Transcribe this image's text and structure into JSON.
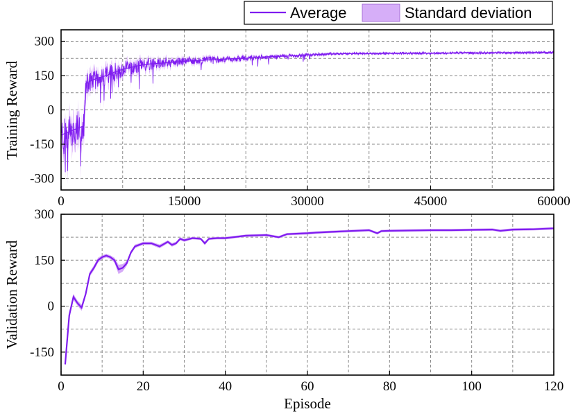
{
  "colors": {
    "average": "#7f1cf0",
    "std_fill": "#c88ef5",
    "std_fill_legend": "#d6aef8"
  },
  "legend": {
    "average_label": "Average",
    "std_label": "Standard deviation"
  },
  "chart_data": [
    {
      "type": "line",
      "ylabel": "Training Reward",
      "xlabel": "",
      "xlim": [
        0,
        60000
      ],
      "ylim": [
        -350,
        350
      ],
      "xticks": [
        0,
        15000,
        30000,
        45000,
        60000
      ],
      "yticks": [
        -300,
        -150,
        0,
        150,
        300
      ],
      "grid": true,
      "legend_position": "top-right",
      "series": [
        {
          "name": "Average",
          "x": [
            0,
            1000,
            2000,
            2800,
            3000,
            3500,
            4500,
            5500,
            6500,
            7500,
            9000,
            10500,
            12500,
            15000,
            17500,
            20000,
            22500,
            25000,
            27500,
            30000,
            32500,
            35000,
            40000,
            45000,
            50000,
            55000,
            60000
          ],
          "y": [
            -110,
            -95,
            -80,
            -70,
            115,
            125,
            140,
            150,
            165,
            178,
            190,
            200,
            205,
            212,
            218,
            222,
            226,
            232,
            235,
            240,
            244,
            246,
            247,
            248,
            249,
            250,
            251
          ],
          "std": [
            70,
            75,
            75,
            70,
            45,
            45,
            45,
            45,
            40,
            35,
            30,
            28,
            22,
            18,
            15,
            13,
            12,
            10,
            9,
            8,
            6,
            5,
            5,
            5,
            5,
            5,
            5
          ]
        }
      ]
    },
    {
      "type": "line",
      "ylabel": "Validation Reward",
      "xlabel": "Episode",
      "xlim": [
        0,
        120
      ],
      "ylim": [
        -225,
        300
      ],
      "xticks": [
        0,
        20,
        40,
        60,
        80,
        100,
        120
      ],
      "yticks": [
        -150,
        0,
        150,
        300
      ],
      "grid": true,
      "series": [
        {
          "name": "Average",
          "x": [
            1,
            2,
            3,
            4,
            5,
            6,
            7,
            8,
            9,
            10,
            11,
            12,
            13,
            14,
            15,
            16,
            17,
            18,
            19,
            20,
            22,
            24,
            26,
            27,
            28,
            29,
            30,
            32,
            34,
            35,
            36,
            38,
            40,
            45,
            50,
            53,
            55,
            60,
            62,
            65,
            70,
            75,
            77,
            78,
            80,
            85,
            90,
            95,
            100,
            105,
            107,
            110,
            115,
            120
          ],
          "y": [
            -190,
            -30,
            30,
            10,
            -5,
            40,
            105,
            125,
            150,
            160,
            165,
            160,
            150,
            120,
            125,
            140,
            175,
            195,
            200,
            205,
            205,
            195,
            210,
            200,
            205,
            220,
            215,
            222,
            220,
            205,
            220,
            222,
            222,
            230,
            232,
            225,
            235,
            238,
            240,
            242,
            245,
            248,
            238,
            245,
            246,
            247,
            248,
            248,
            249,
            250,
            246,
            250,
            251,
            254
          ],
          "std": [
            6,
            12,
            10,
            8,
            10,
            8,
            8,
            8,
            8,
            6,
            6,
            6,
            8,
            15,
            12,
            8,
            6,
            6,
            5,
            5,
            5,
            6,
            5,
            6,
            5,
            5,
            5,
            4,
            4,
            6,
            4,
            4,
            4,
            4,
            4,
            4,
            4,
            4,
            4,
            4,
            4,
            4,
            4,
            4,
            4,
            4,
            4,
            4,
            4,
            4,
            4,
            4,
            4,
            4
          ]
        }
      ]
    }
  ]
}
